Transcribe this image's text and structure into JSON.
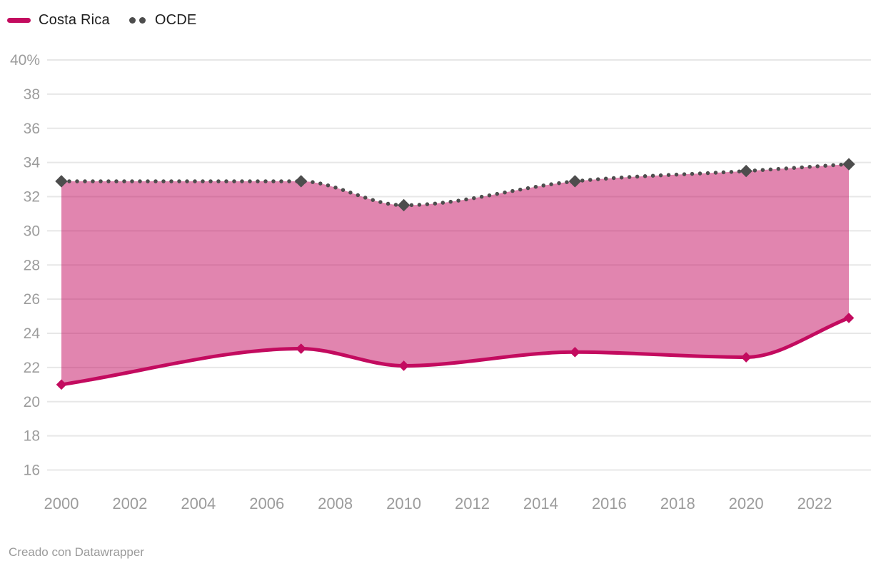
{
  "legend": {
    "items": [
      {
        "label": "Costa Rica",
        "swatch": "line",
        "color": "#c30b5f"
      },
      {
        "label": "OCDE",
        "swatch": "dots",
        "color": "#4d4d4d"
      }
    ]
  },
  "footer": {
    "credit": "Creado con Datawrapper"
  },
  "colors": {
    "costa_rica_line": "#c30b5f",
    "area_fill_rgba": "rgba(195,11,95,0.5)",
    "ocde_dots": "#4d4d4d",
    "gridline": "#e7e7e7",
    "tick_label": "#9c9c9c",
    "legend_text": "#1d1d1d",
    "footer_text": "#9a9a9a",
    "background": "#ffffff"
  },
  "chart_data": {
    "type": "area",
    "x": [
      2000,
      2007,
      2010,
      2015,
      2020,
      2023
    ],
    "series": [
      {
        "name": "Costa Rica",
        "values": [
          21.0,
          23.1,
          22.1,
          22.9,
          22.6,
          24.9
        ],
        "style": "solid-line-diamond-markers",
        "color": "#c30b5f"
      },
      {
        "name": "OCDE",
        "values": [
          32.9,
          32.9,
          31.5,
          32.9,
          33.5,
          33.9
        ],
        "style": "dotted-line-diamond-markers",
        "color": "#4d4d4d"
      }
    ],
    "fill_between": [
      "OCDE",
      "Costa Rica"
    ],
    "xlim": [
      2000,
      2023
    ],
    "ylim": [
      16,
      40
    ],
    "unit": "%",
    "grid": "horizontal",
    "legend_position": "top-left",
    "interpolation": "monotone",
    "y_ticks": [
      {
        "v": 40,
        "label": "40%"
      },
      {
        "v": 38,
        "label": "38"
      },
      {
        "v": 36,
        "label": "36"
      },
      {
        "v": 34,
        "label": "34"
      },
      {
        "v": 32,
        "label": "32"
      },
      {
        "v": 30,
        "label": "30"
      },
      {
        "v": 28,
        "label": "28"
      },
      {
        "v": 26,
        "label": "26"
      },
      {
        "v": 24,
        "label": "24"
      },
      {
        "v": 22,
        "label": "22"
      },
      {
        "v": 20,
        "label": "20"
      },
      {
        "v": 18,
        "label": "18"
      },
      {
        "v": 16,
        "label": "16"
      }
    ],
    "x_ticks": [
      {
        "v": 2000,
        "label": "2000"
      },
      {
        "v": 2002,
        "label": "2002"
      },
      {
        "v": 2004,
        "label": "2004"
      },
      {
        "v": 2006,
        "label": "2006"
      },
      {
        "v": 2008,
        "label": "2008"
      },
      {
        "v": 2010,
        "label": "2010"
      },
      {
        "v": 2012,
        "label": "2012"
      },
      {
        "v": 2014,
        "label": "2014"
      },
      {
        "v": 2016,
        "label": "2016"
      },
      {
        "v": 2018,
        "label": "2018"
      },
      {
        "v": 2020,
        "label": "2020"
      },
      {
        "v": 2022,
        "label": "2022"
      }
    ]
  }
}
